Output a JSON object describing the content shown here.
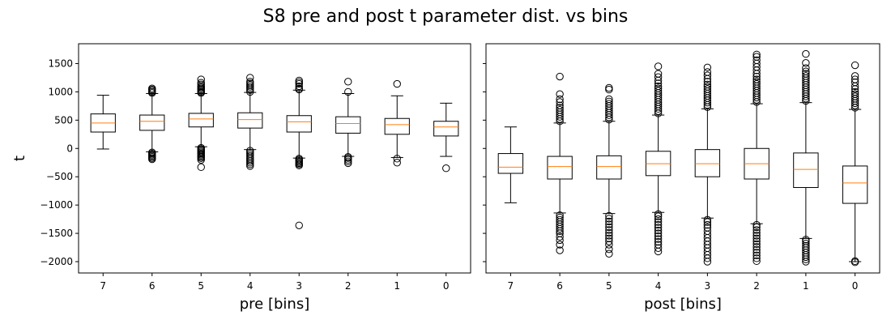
{
  "title": "S8 pre and post t parameter dist. vs bins",
  "colors": {
    "median": "#ff7f0e",
    "box": "#000000",
    "background": "#ffffff"
  },
  "chart_data": [
    {
      "type": "box",
      "xlabel": "pre [bins]",
      "ylabel": "t",
      "ylim": [
        -2200,
        1850
      ],
      "yticks": [
        -2000,
        -1500,
        -1000,
        -500,
        0,
        500,
        1000,
        1500
      ],
      "ytick_labels": [
        "−2000",
        "−1500",
        "−1000",
        "−500",
        "0",
        "500",
        "1000",
        "1500"
      ],
      "categories": [
        "7",
        "6",
        "5",
        "4",
        "3",
        "2",
        "1",
        "0"
      ],
      "boxes": [
        {
          "label": "7",
          "q1": 290,
          "median": 450,
          "q3": 610,
          "whisker_low": -10,
          "whisker_high": 940,
          "outliers": []
        },
        {
          "label": "6",
          "q1": 320,
          "median": 480,
          "q3": 590,
          "whisker_low": -60,
          "whisker_high": 970,
          "outliers": [
            -190,
            -170,
            -150,
            -130,
            -110,
            -90,
            -70,
            980,
            1000,
            1020,
            1040,
            1060
          ]
        },
        {
          "label": "5",
          "q1": 380,
          "median": 520,
          "q3": 620,
          "whisker_low": 30,
          "whisker_high": 970,
          "outliers": [
            -330,
            -200,
            -170,
            -150,
            -130,
            -110,
            -90,
            -70,
            -50,
            -30,
            -10,
            10,
            980,
            1000,
            1020,
            1040,
            1060,
            1080,
            1100,
            1130,
            1160,
            1220
          ]
        },
        {
          "label": "4",
          "q1": 360,
          "median": 510,
          "q3": 630,
          "whisker_low": -20,
          "whisker_high": 990,
          "outliers": [
            -310,
            -280,
            -250,
            -220,
            -190,
            -160,
            -130,
            -100,
            -70,
            -40,
            1000,
            1030,
            1060,
            1090,
            1120,
            1150,
            1180,
            1250
          ]
        },
        {
          "label": "3",
          "q1": 290,
          "median": 470,
          "q3": 580,
          "whisker_low": -170,
          "whisker_high": 1030,
          "outliers": [
            -1360,
            -300,
            -280,
            -260,
            -240,
            -220,
            -200,
            -180,
            1040,
            1060,
            1100,
            1140,
            1170,
            1200
          ]
        },
        {
          "label": "2",
          "q1": 270,
          "median": 440,
          "q3": 560,
          "whisker_low": -140,
          "whisker_high": 970,
          "outliers": [
            -260,
            -230,
            -200,
            -170,
            -150,
            1000,
            1180
          ]
        },
        {
          "label": "1",
          "q1": 250,
          "median": 420,
          "q3": 530,
          "whisker_low": -160,
          "whisker_high": 930,
          "outliers": [
            -250,
            -180,
            1140
          ]
        },
        {
          "label": "0",
          "q1": 220,
          "median": 380,
          "q3": 480,
          "whisker_low": -140,
          "whisker_high": 800,
          "outliers": [
            -350
          ]
        }
      ]
    },
    {
      "type": "box",
      "xlabel": "post [bins]",
      "ylabel": "",
      "ylim": [
        -2200,
        1850
      ],
      "yticks": [
        -2000,
        -1500,
        -1000,
        -500,
        0,
        500,
        1000,
        1500
      ],
      "ytick_labels": [],
      "categories": [
        "7",
        "6",
        "5",
        "4",
        "3",
        "2",
        "1",
        "0"
      ],
      "boxes": [
        {
          "label": "7",
          "q1": -440,
          "median": -330,
          "q3": -90,
          "whisker_low": -960,
          "whisker_high": 380,
          "outliers": []
        },
        {
          "label": "6",
          "q1": -540,
          "median": -320,
          "q3": -140,
          "whisker_low": -1140,
          "whisker_high": 450,
          "outliers": [
            -1800,
            -1700,
            -1620,
            -1560,
            -1500,
            -1460,
            -1420,
            -1380,
            -1340,
            -1300,
            -1260,
            -1220,
            -1180,
            480,
            520,
            560,
            600,
            640,
            680,
            720,
            760,
            820,
            870,
            960,
            1270
          ]
        },
        {
          "label": "5",
          "q1": -540,
          "median": -320,
          "q3": -130,
          "whisker_low": -1150,
          "whisker_high": 480,
          "outliers": [
            -1860,
            -1780,
            -1700,
            -1640,
            -1590,
            -1540,
            -1490,
            -1440,
            -1390,
            -1340,
            -1290,
            -1240,
            -1190,
            510,
            550,
            590,
            630,
            670,
            710,
            750,
            790,
            830,
            870,
            1040,
            1070
          ]
        },
        {
          "label": "4",
          "q1": -480,
          "median": -270,
          "q3": -50,
          "whisker_low": -1130,
          "whisker_high": 590,
          "outliers": [
            -1820,
            -1760,
            -1700,
            -1650,
            -1600,
            -1550,
            -1500,
            -1450,
            -1400,
            -1350,
            -1300,
            -1250,
            -1200,
            -1160,
            620,
            660,
            700,
            740,
            780,
            820,
            860,
            900,
            940,
            980,
            1020,
            1060,
            1100,
            1150,
            1200,
            1260,
            1320,
            1450
          ]
        },
        {
          "label": "3",
          "q1": -500,
          "median": -270,
          "q3": -20,
          "whisker_low": -1230,
          "whisker_high": 700,
          "outliers": [
            -2000,
            -1940,
            -1880,
            -1820,
            -1760,
            -1700,
            -1640,
            -1580,
            -1520,
            -1460,
            -1400,
            -1350,
            -1300,
            -1260,
            730,
            770,
            810,
            850,
            890,
            930,
            970,
            1010,
            1050,
            1090,
            1130,
            1180,
            1230,
            1290,
            1350,
            1430
          ]
        },
        {
          "label": "2",
          "q1": -540,
          "median": -270,
          "q3": 0,
          "whisker_low": -1330,
          "whisker_high": 790,
          "outliers": [
            -1990,
            -1940,
            -1890,
            -1840,
            -1790,
            -1740,
            -1690,
            -1640,
            -1590,
            -1540,
            -1490,
            -1440,
            -1390,
            -1350,
            820,
            860,
            900,
            940,
            980,
            1020,
            1060,
            1100,
            1140,
            1180,
            1220,
            1270,
            1320,
            1380,
            1440,
            1500,
            1560,
            1620,
            1660
          ]
        },
        {
          "label": "1",
          "q1": -690,
          "median": -370,
          "q3": -80,
          "whisker_low": -1590,
          "whisker_high": 810,
          "outliers": [
            -2000,
            -1960,
            -1920,
            -1880,
            -1840,
            -1800,
            -1760,
            -1720,
            -1680,
            -1640,
            -1610,
            840,
            880,
            920,
            960,
            1000,
            1040,
            1080,
            1120,
            1160,
            1200,
            1240,
            1280,
            1320,
            1360,
            1420,
            1510,
            1670
          ]
        },
        {
          "label": "0",
          "q1": -970,
          "median": -610,
          "q3": -310,
          "whisker_low": -2000,
          "whisker_high": 690,
          "outliers": [
            -2010,
            -1990,
            720,
            760,
            800,
            840,
            880,
            920,
            960,
            1000,
            1050,
            1100,
            1170,
            1220,
            1280,
            1470
          ]
        }
      ]
    }
  ]
}
